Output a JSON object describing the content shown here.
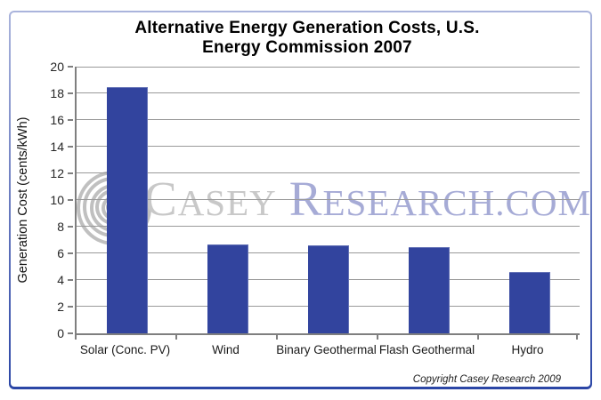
{
  "title": {
    "line1": "Alternative Energy Generation Costs, U.S.",
    "line2": "Energy Commission 2007"
  },
  "chart_data": {
    "type": "bar",
    "title": "Alternative Energy Generation Costs, U.S. Energy Commission 2007",
    "categories": [
      "Solar (Conc. PV)",
      "Wind",
      "Binary Geothermal",
      "Flash Geothermal",
      "Hydro"
    ],
    "values": [
      18.5,
      6.7,
      6.6,
      6.5,
      4.6
    ],
    "xlabel": "",
    "ylabel": "Generation Cost (cents/kWh)",
    "ylim": [
      0,
      20
    ],
    "ytick_step": 2,
    "grid": true,
    "legend": "none",
    "bar_color": "#32449e",
    "gridline_color": "#9a9a9a",
    "axis_color": "#7f7f7f"
  },
  "watermark": {
    "word1": "Casey",
    "word2": "Research.com",
    "logo": "spiral-circles-arrow",
    "word1_color": "#c8c8c8",
    "word2_color": "#a6abd6",
    "logo_color": "#c0c0c0"
  },
  "copyright": "Copyright Casey Research 2009"
}
